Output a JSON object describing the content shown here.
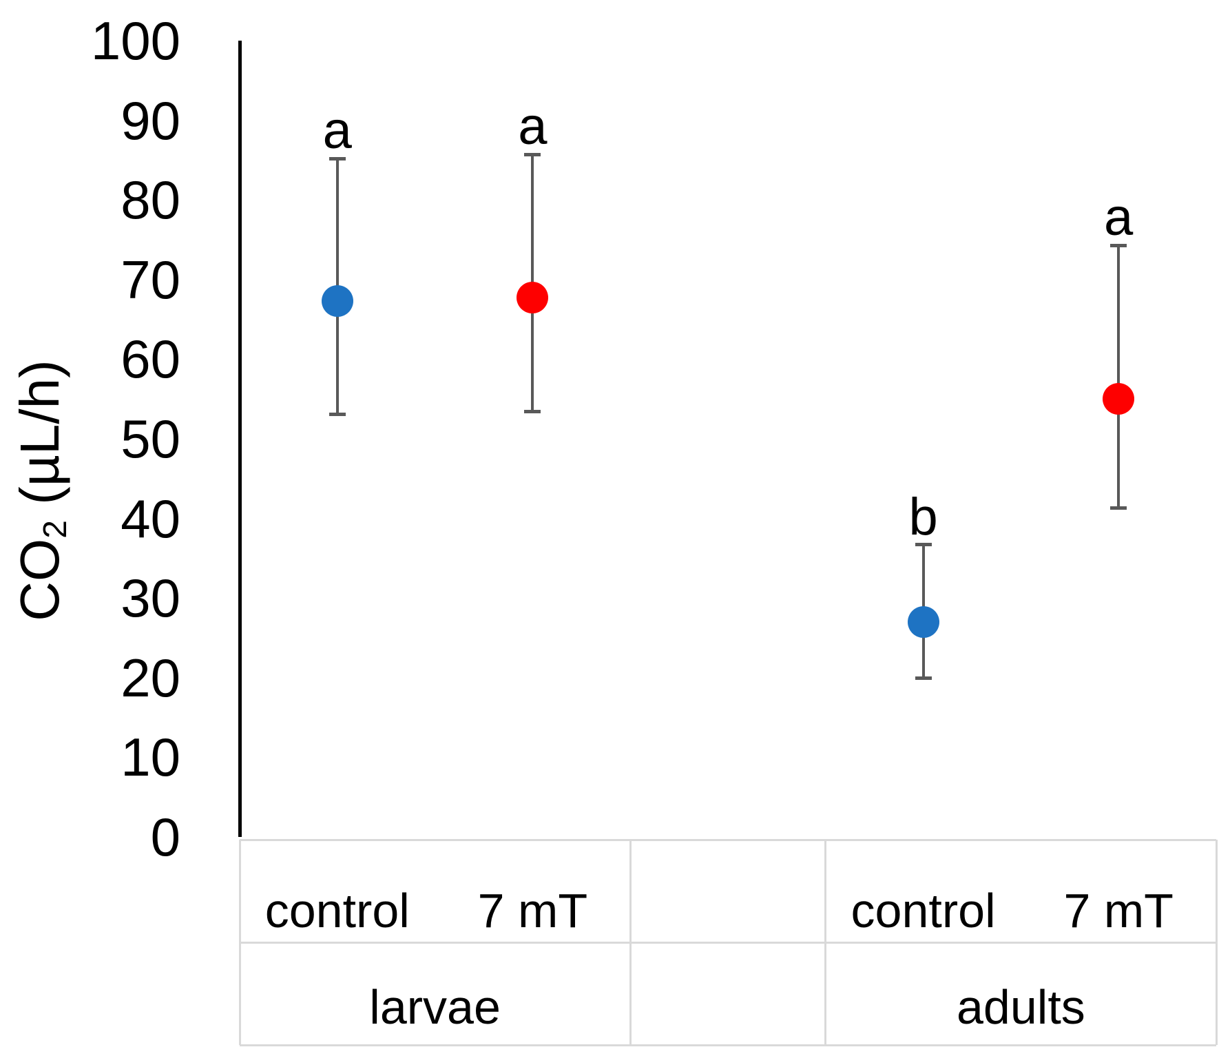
{
  "chart_data": {
    "type": "scatter",
    "title": "",
    "ylabel_parts": {
      "prefix": "CO",
      "subscript": "2",
      "suffix": " (µL/h)"
    },
    "ylabel_text": "CO2 (µL/h)",
    "xlabel": "",
    "ylim": [
      0,
      100
    ],
    "yticks": [
      0,
      10,
      20,
      30,
      40,
      50,
      60,
      70,
      80,
      90,
      100
    ],
    "grid": false,
    "legend": "none",
    "groups": [
      {
        "label": "larvae",
        "conditions": [
          "control",
          "7 mT"
        ]
      },
      {
        "label": "",
        "conditions": [
          ""
        ]
      },
      {
        "label": "adults",
        "conditions": [
          "control",
          "7 mT"
        ]
      }
    ],
    "series": [
      {
        "name": "control",
        "color": "#1E73C3",
        "points": [
          {
            "group": "larvae",
            "mean": 67.3,
            "upper": 85.2,
            "lower": 53.1,
            "letter": "a"
          },
          {
            "group": "adults",
            "mean": 27.0,
            "upper": 36.7,
            "lower": 19.9,
            "letter": "b"
          }
        ]
      },
      {
        "name": "7 mT",
        "color": "#FE0000",
        "points": [
          {
            "group": "larvae",
            "mean": 67.7,
            "upper": 85.7,
            "lower": 53.4,
            "letter": "a"
          },
          {
            "group": "adults",
            "mean": 55.0,
            "upper": 74.3,
            "lower": 41.3,
            "letter": "a"
          }
        ]
      }
    ],
    "colors": {
      "error_bar": "#595959",
      "axis_line": "#000000",
      "table_line": "#D9D9D9",
      "text": "#000000"
    }
  }
}
